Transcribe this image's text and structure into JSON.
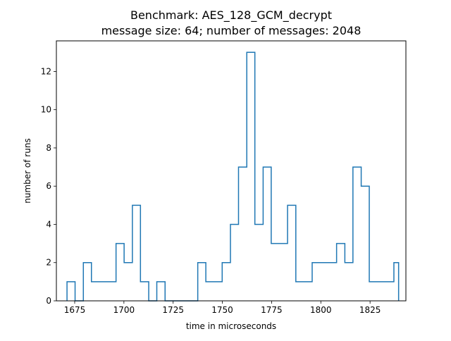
{
  "chart_data": {
    "type": "histogram",
    "title": "Benchmark: AES_128_GCM_decrypt",
    "subtitle": "message size: 64; number of messages: 2048",
    "xlabel": "time in microseconds",
    "ylabel": "number of runs",
    "xlim": [
      1665.7,
      1843.2
    ],
    "ylim": [
      0,
      13.6
    ],
    "xticks": [
      1675,
      1700,
      1725,
      1750,
      1775,
      1800,
      1825
    ],
    "yticks": [
      0,
      2,
      4,
      6,
      8,
      10,
      12
    ],
    "grid": false,
    "line_color": "#1f77b4",
    "bin_edges": [
      1671.1,
      1675.2,
      1679.4,
      1683.5,
      1687.7,
      1691.8,
      1696.0,
      1700.1,
      1704.3,
      1708.4,
      1712.6,
      1716.7,
      1720.9,
      1725.0,
      1729.2,
      1733.3,
      1737.5,
      1741.6,
      1745.8,
      1749.9,
      1754.1,
      1758.2,
      1762.4,
      1766.5,
      1770.7,
      1774.8,
      1779.0,
      1783.1,
      1787.3,
      1791.4,
      1795.6,
      1799.7,
      1803.9,
      1808.0,
      1812.2,
      1816.3,
      1820.5,
      1824.6,
      1828.8,
      1832.9,
      1837.1,
      1839.5
    ],
    "counts": [
      1,
      0,
      2,
      1,
      1,
      1,
      3,
      2,
      5,
      1,
      0,
      1,
      0,
      0,
      0,
      0,
      2,
      1,
      1,
      2,
      4,
      7,
      13,
      4,
      7,
      3,
      3,
      5,
      1,
      1,
      2,
      2,
      2,
      3,
      2,
      7,
      6,
      1,
      1,
      1,
      2
    ]
  }
}
